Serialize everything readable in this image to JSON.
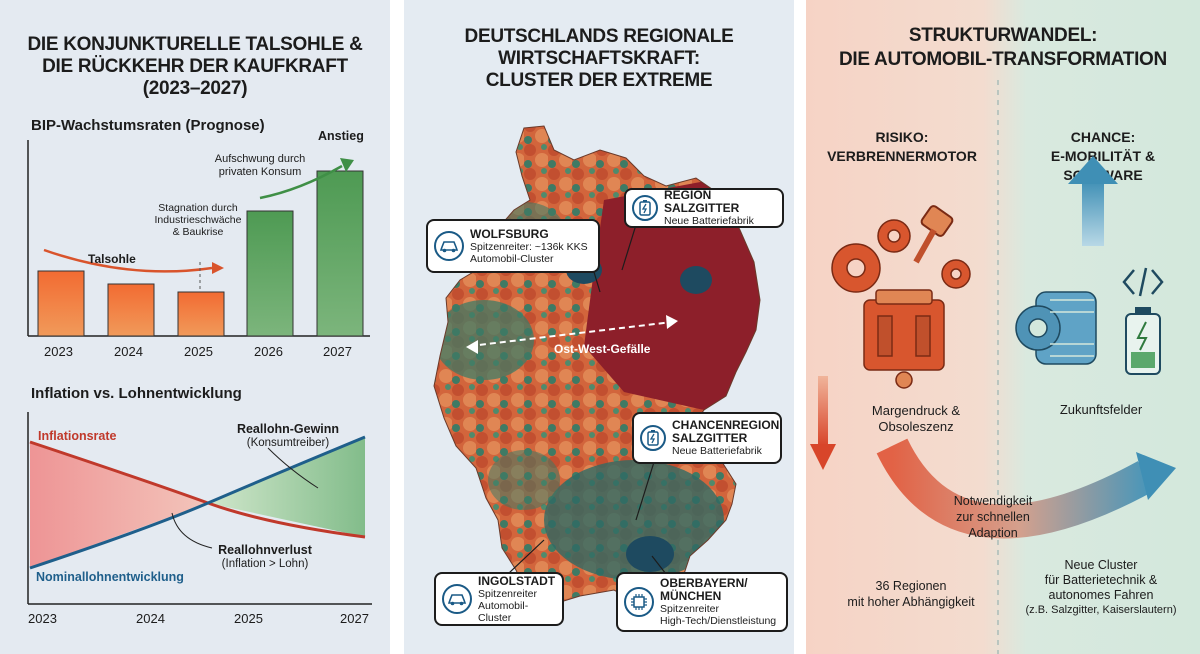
{
  "panel1": {
    "title": [
      "DIE KONJUNKTURELLE TALSOHLE &",
      "DIE RÜCKKEHR DER KAUFKRAFT",
      "(2023–2027)"
    ],
    "bip": {
      "subtitle": "BIP-Wachstumsraten (Prognose)",
      "years": [
        "2023",
        "2024",
        "2025",
        "2026",
        "2027"
      ],
      "label_talsohle": "Talsohle",
      "label_stagnation": [
        "Stagnation durch",
        "Industrieschwäche",
        "& Baukrise"
      ],
      "label_aufschwung": [
        "Aufschwung durch",
        "privaten Konsum"
      ],
      "label_anstieg": "Anstieg",
      "colors": {
        "down": "#e8532b",
        "up": "#5b9e5e"
      }
    },
    "inflation": {
      "subtitle": "Inflation vs. Lohnentwicklung",
      "label_inflationsrate": "Inflationsrate",
      "label_nominal": "Nominallohnentwicklung",
      "label_gewinn": [
        "Reallohn-Gewinn",
        "(Konsumtreiber)"
      ],
      "label_verlust": [
        "Reallohnverlust",
        "(Inflation > Lohn)"
      ],
      "years": [
        "2023",
        "2024",
        "2025",
        "2027"
      ],
      "colors": {
        "inflation": "#c0392b",
        "nominal": "#1f5f8b"
      }
    }
  },
  "panel2": {
    "title": [
      "DEUTSCHLANDS REGIONALE",
      "WIRTSCHAFTSKRAFT:",
      "CLUSTER DER EXTREME"
    ],
    "map_label": "Ost-West-Gefälle",
    "callouts": [
      {
        "id": "wolfsburg",
        "icon": "car-icon",
        "head": "WOLFSBURG",
        "lines": [
          "Spitzenreiter: ~136k KKS",
          "Automobil-Cluster"
        ]
      },
      {
        "id": "salzgitter",
        "icon": "battery-icon",
        "head": "REGION SALZGITTER",
        "lines": [
          "Neue Batteriefabrik"
        ]
      },
      {
        "id": "chancenregion",
        "icon": "battery-icon",
        "head": "CHANCENREGION\nSALZGITTER",
        "lines": [
          "Neue Batteriefabrik"
        ]
      },
      {
        "id": "ingolstadt",
        "icon": "car-icon",
        "head": "INGOLSTADT",
        "lines": [
          "Spitzenreiter",
          "Automobil-Cluster"
        ]
      },
      {
        "id": "muenchen",
        "icon": "chip-icon",
        "head": "OBERBAYERN/\nMÜNCHEN",
        "lines": [
          "Spitzenreiter",
          "High-Tech/Dienstleistung"
        ]
      }
    ]
  },
  "panel3": {
    "title": [
      "STRUKTURWANDEL:",
      "DIE AUTOMOBIL-TRANSFORMATION"
    ],
    "risk_head": [
      "RISIKO:",
      "VERBRENNERMOTOR"
    ],
    "chance_head": [
      "CHANCE:",
      "E-MOBILITÄT &",
      "SOFTWARE"
    ],
    "risk_label": [
      "Margendruck &",
      "Obsoleszenz"
    ],
    "chance_label": "Zukunftsfelder",
    "arrow_label": [
      "Notwendigkeit",
      "zur schnellen",
      "Adaption"
    ],
    "risk_footer": [
      "36 Regionen",
      "mit hoher Abhängigkeit"
    ],
    "chance_footer": [
      "Neue Cluster",
      "für Batterietechnik &",
      "autonomes Fahren",
      "(z.B. Salzgitter, Kaiserslautern)"
    ],
    "colors": {
      "risk": "#d8562e",
      "chance": "#3f8fb5"
    }
  }
}
